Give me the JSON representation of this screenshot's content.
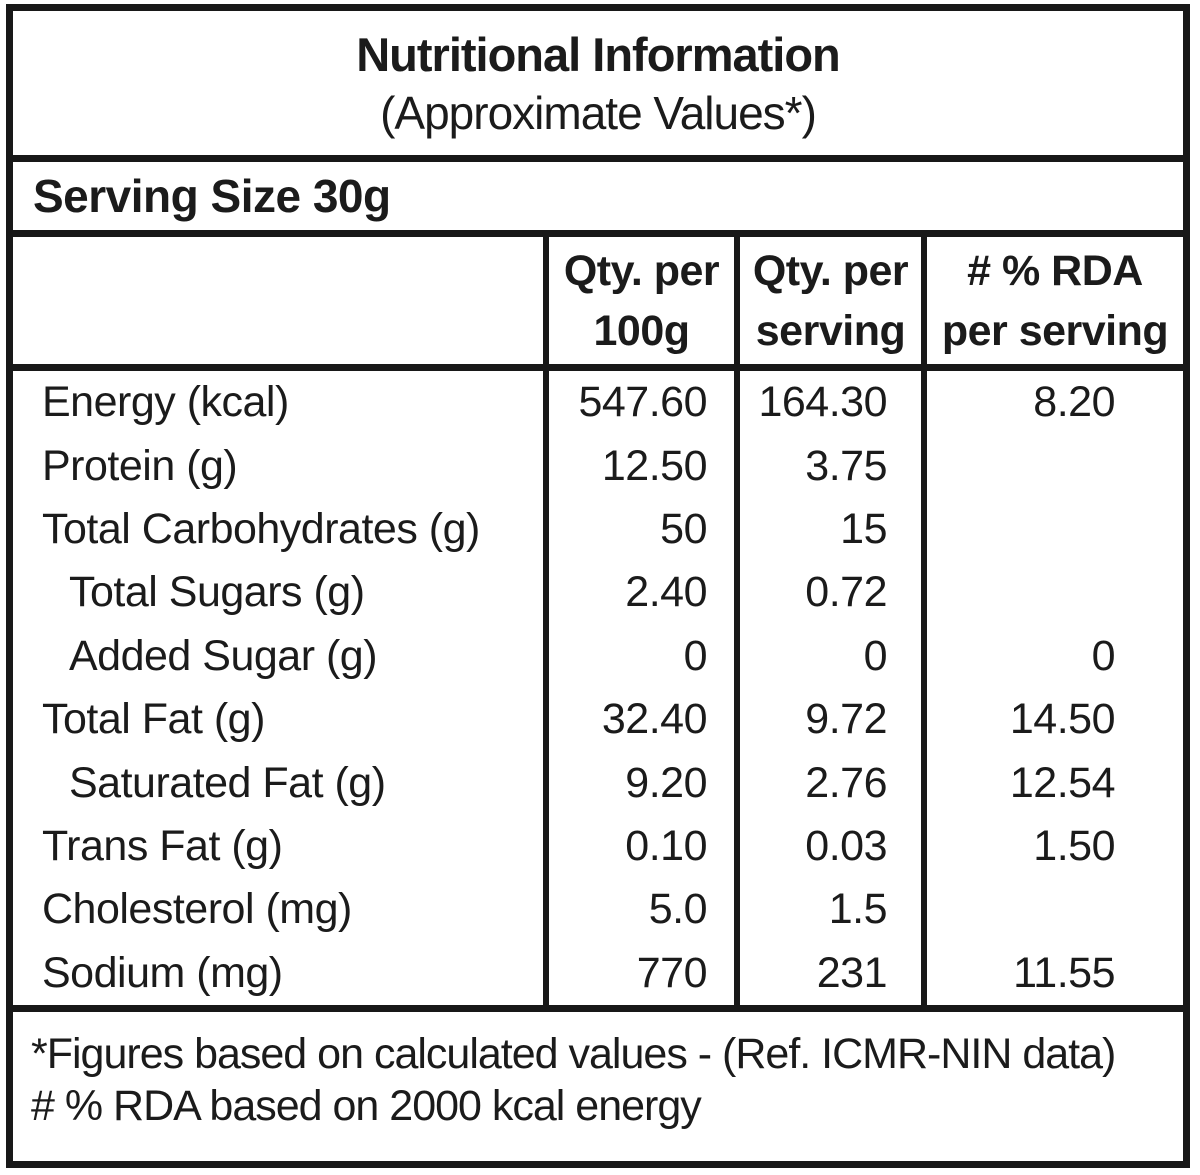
{
  "title": {
    "line1": "Nutritional Information",
    "line2": "(Approximate Values*)"
  },
  "serving": {
    "label": "Serving Size 30g"
  },
  "table": {
    "columns": [
      {
        "id": "nutrient",
        "header_line1": "",
        "header_line2": ""
      },
      {
        "id": "per_100g",
        "header_line1": "Qty. per",
        "header_line2": "100g"
      },
      {
        "id": "per_serving",
        "header_line1": "Qty. per",
        "header_line2": "serving"
      },
      {
        "id": "rda",
        "header_line1": "# % RDA",
        "header_line2": "per serving"
      }
    ],
    "rows": [
      {
        "label": "Energy (kcal)",
        "indent": false,
        "per_100g": "547.60",
        "per_serving": "164.30",
        "rda": "8.20"
      },
      {
        "label": "Protein (g)",
        "indent": false,
        "per_100g": "12.50",
        "per_serving": "3.75",
        "rda": ""
      },
      {
        "label": "Total Carbohydrates (g)",
        "indent": false,
        "per_100g": "50",
        "per_serving": "15",
        "rda": ""
      },
      {
        "label": "Total Sugars (g)",
        "indent": true,
        "per_100g": "2.40",
        "per_serving": "0.72",
        "rda": ""
      },
      {
        "label": "Added Sugar (g)",
        "indent": true,
        "per_100g": "0",
        "per_serving": "0",
        "rda": "0"
      },
      {
        "label": "Total Fat (g)",
        "indent": false,
        "per_100g": "32.40",
        "per_serving": "9.72",
        "rda": "14.50"
      },
      {
        "label": "Saturated Fat (g)",
        "indent": true,
        "per_100g": "9.20",
        "per_serving": "2.76",
        "rda": "12.54"
      },
      {
        "label": "Trans Fat (g)",
        "indent": false,
        "per_100g": "0.10",
        "per_serving": "0.03",
        "rda": "1.50"
      },
      {
        "label": "Cholesterol (mg)",
        "indent": false,
        "per_100g": "5.0",
        "per_serving": "1.5",
        "rda": ""
      },
      {
        "label": "Sodium (mg)",
        "indent": false,
        "per_100g": "770",
        "per_serving": "231",
        "rda": "11.55"
      }
    ]
  },
  "footnotes": [
    "*Figures based on calculated values - (Ref. ICMR-NIN data)",
    "# % RDA based on 2000 kcal energy"
  ],
  "colors": {
    "text": "#1b1b1b",
    "border": "#181818",
    "background": "#ffffff"
  }
}
